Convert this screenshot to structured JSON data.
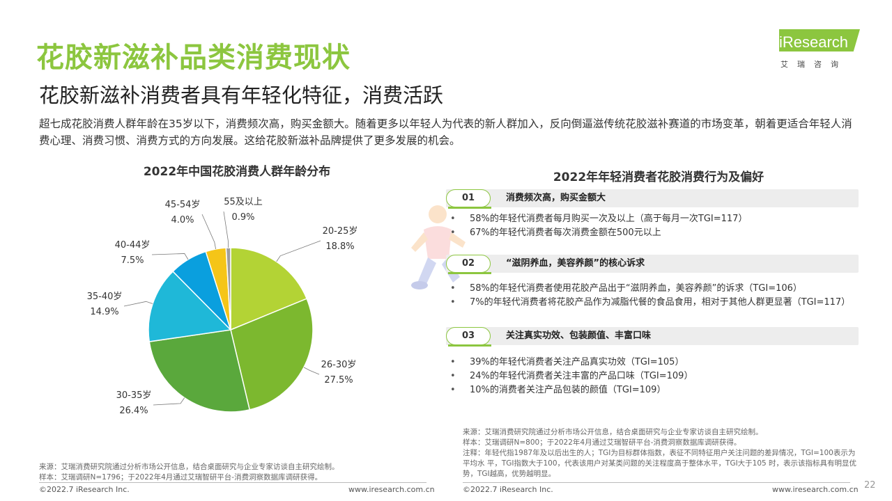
{
  "header": {
    "title": "花胶新滋补品类消费现状",
    "subtitle": "花胶新滋补消费者具有年轻化特征，消费活跃",
    "intro": "超七成花胶消费人群年龄在35岁以下，消费频次高，购买金额大。随着更多以年轻人为代表的新人群加入，反向倒逼滋传统花胶滋补赛道的市场变革，朝着更适合年轻人消费心理、消费习惯、消费方式的方向发展。这给花胶新滋补品牌提供了更多发展的机会。"
  },
  "logo": {
    "text": "iResearch",
    "cn": "艾瑞咨询"
  },
  "chart_data": {
    "type": "pie",
    "title": "2022年中国花胶消费人群年龄分布",
    "start": "12 o'clock, clockwise",
    "slices": [
      {
        "label": "20-25岁",
        "value": 18.8,
        "value_text": "18.8%",
        "color": "#b3d335"
      },
      {
        "label": "26-30岁",
        "value": 27.5,
        "value_text": "27.5%",
        "color": "#7cb82f"
      },
      {
        "label": "30-35岁",
        "value": 26.4,
        "value_text": "26.4%",
        "color": "#5aa83c"
      },
      {
        "label": "35-40岁",
        "value": 14.9,
        "value_text": "14.9%",
        "color": "#1fb8d8"
      },
      {
        "label": "40-44岁",
        "value": 7.5,
        "value_text": "7.5%",
        "color": "#0a9fde"
      },
      {
        "label": "45-54岁",
        "value": 4.0,
        "value_text": "4.0%",
        "color": "#f5c518"
      },
      {
        "label": "55及以上",
        "value": 0.9,
        "value_text": "0.9%",
        "color": "#9e9e9e"
      }
    ]
  },
  "right": {
    "title": "2022年年轻消费者花胶消费行为及偏好",
    "sections": [
      {
        "num": "01",
        "label": "消费频次高，购买金额大",
        "items": [
          "58%的年轻代消费者每月购买一次及以上（高于每月一次TGI=117）",
          "67%的年轻代消费者每次消费金额在500元以上"
        ]
      },
      {
        "num": "02",
        "label": "“滋阴养血，美容养颜”的核心诉求",
        "items": [
          "58%的年轻代消费者使用花胶产品出于“滋阴养血，美容养颜”的诉求（TGI=106）",
          "7%的年轻代消费者将花胶产品作为减脂代餐的食品食用，相对于其他人群更显著（TGI=117）"
        ]
      },
      {
        "num": "03",
        "label": "关注真实功效、包装颜值、丰富口味",
        "items": [
          "39%的年轻代消费者关注产品真实功效（TGI=105）",
          "24%的年轻代消费者关注丰富的产品口味（TGI=109）",
          "10%的消费者关注产品包装的颜值（TGI=109）"
        ]
      }
    ]
  },
  "sources": {
    "left": [
      "来源：艾瑞消费研究院通过分析市场公开信息，结合桌面研究与企业专家访谈自主研究绘制。",
      "样本：艾瑞调研N=1796；于2022年4月通过艾瑞智研平台-消费洞察数据库调研获得。"
    ],
    "right": [
      "来源：艾瑞消费研究院通过分析市场公开信息，结合桌面研究与企业专家访谈自主研究绘制。",
      "样本：艾瑞调研N=800；于2022年4月通过艾瑞智研平台-消费洞察数据库调研获得。",
      "注释：年轻代指1987年及以后出生的人；TGI为目标群体指数，表征不同特征用户关注问题的差异情况，TGI=100表示为平均水 平，TGI指数大于100，代表该用户对某类问题的关注程度高于整体水平，TGI大于105 时，表示该指标具有明显优势，TGI越高，优势越明显。"
    ]
  },
  "footer": {
    "copyright": "©2022.7 iResearch Inc.",
    "url": "www.iresearch.com.cn",
    "page": "22"
  },
  "colors": {
    "brand": "#8cc63f"
  }
}
